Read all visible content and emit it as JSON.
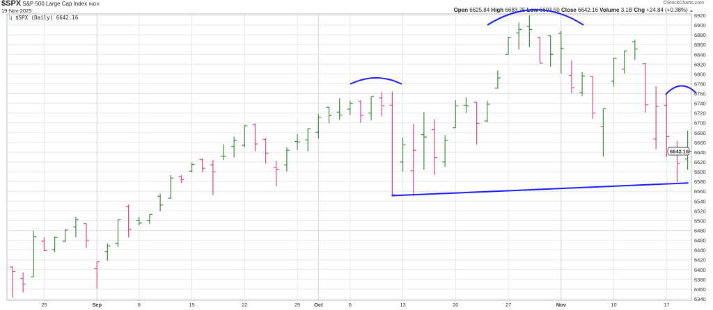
{
  "header": {
    "symbol": "$SPX",
    "name": "S&P 500 Large Cap Index",
    "exchange": "INDX",
    "date": "19-Nov-2025",
    "copyright": "©StockCharts.com",
    "open_label": "Open",
    "open": "6625.84",
    "high_label": "High",
    "high": "6683.75",
    "low_label": "Low",
    "low": "6603.50",
    "close_label": "Close",
    "close": "6642.16",
    "volume_label": "Volume",
    "volume": "3.1B",
    "chg_label": "Chg",
    "chg": "+24.84 (+0.38%)",
    "chg_icon": "triangle-up-icon"
  },
  "legend": {
    "text": "$SPX (Daily) 6642.16",
    "icon": "ohlc-bar-icon"
  },
  "last_price_label": "6642.16",
  "colors": {
    "up": "#3c8c3c",
    "down": "#e2457c",
    "annotation": "#1a1aff",
    "grid": "#e6e6e6"
  },
  "chart_data": {
    "type": "ohlc",
    "ylim": [
      6330,
      6925
    ],
    "yticks": [
      6340,
      6360,
      6380,
      6400,
      6420,
      6440,
      6460,
      6480,
      6500,
      6520,
      6540,
      6560,
      6580,
      6600,
      6620,
      6640,
      6660,
      6680,
      6700,
      6720,
      6740,
      6760,
      6780,
      6800,
      6820,
      6840,
      6860,
      6880,
      6900,
      6920
    ],
    "xticks": [
      {
        "date": "2025-08-25",
        "label": "25"
      },
      {
        "date": "2025-09-02",
        "label": "Sep",
        "month": true
      },
      {
        "date": "2025-09-08",
        "label": "8"
      },
      {
        "date": "2025-09-15",
        "label": "15"
      },
      {
        "date": "2025-09-22",
        "label": "22"
      },
      {
        "date": "2025-09-29",
        "label": "29"
      },
      {
        "date": "2025-10-01",
        "label": "Oct",
        "month": true
      },
      {
        "date": "2025-10-06",
        "label": "6"
      },
      {
        "date": "2025-10-13",
        "label": "13"
      },
      {
        "date": "2025-10-20",
        "label": "20"
      },
      {
        "date": "2025-10-27",
        "label": "27"
      },
      {
        "date": "2025-11-03",
        "label": "Nov",
        "month": true
      },
      {
        "date": "2025-11-10",
        "label": "10"
      },
      {
        "date": "2025-11-17",
        "label": "17"
      }
    ],
    "grid": true,
    "bars": [
      [
        "2025-08-20",
        6405,
        6407,
        6343,
        6396
      ],
      [
        "2025-08-21",
        6382,
        6394,
        6353,
        6370
      ],
      [
        "2025-08-22",
        6385,
        6479,
        6385,
        6467
      ],
      [
        "2025-08-25",
        6458,
        6466,
        6438,
        6439
      ],
      [
        "2025-08-26",
        6441,
        6467,
        6435,
        6466
      ],
      [
        "2025-08-27",
        6458,
        6482,
        6456,
        6481
      ],
      [
        "2025-08-28",
        6487,
        6508,
        6466,
        6502
      ],
      [
        "2025-08-29",
        6494,
        6494,
        6444,
        6460
      ],
      [
        "2025-09-02",
        6402,
        6416,
        6361,
        6416
      ],
      [
        "2025-09-03",
        6437,
        6453,
        6418,
        6448
      ],
      [
        "2025-09-04",
        6453,
        6502,
        6446,
        6502
      ],
      [
        "2025-09-05",
        6529,
        6533,
        6466,
        6482
      ],
      [
        "2025-09-08",
        6500,
        6508,
        6490,
        6495
      ],
      [
        "2025-09-09",
        6500,
        6513,
        6493,
        6513
      ],
      [
        "2025-09-10",
        6550,
        6555,
        6519,
        6532
      ],
      [
        "2025-09-11",
        6546,
        6593,
        6545,
        6587
      ],
      [
        "2025-09-12",
        6590,
        6593,
        6577,
        6584
      ],
      [
        "2025-09-15",
        6601,
        6619,
        6599,
        6615
      ],
      [
        "2025-09-16",
        6625,
        6627,
        6599,
        6607
      ],
      [
        "2025-09-17",
        6614,
        6624,
        6552,
        6600
      ],
      [
        "2025-09-18",
        6632,
        6656,
        6624,
        6632
      ],
      [
        "2025-09-19",
        6652,
        6672,
        6629,
        6664
      ],
      [
        "2025-09-22",
        6654,
        6696,
        6650,
        6694
      ],
      [
        "2025-09-23",
        6696,
        6699,
        6642,
        6657
      ],
      [
        "2025-09-24",
        6666,
        6669,
        6617,
        6638
      ],
      [
        "2025-09-25",
        6609,
        6622,
        6570,
        6605
      ],
      [
        "2025-09-26",
        6614,
        6650,
        6601,
        6644
      ],
      [
        "2025-09-29",
        6662,
        6677,
        6644,
        6661
      ],
      [
        "2025-09-30",
        6665,
        6689,
        6642,
        6688
      ],
      [
        "2025-10-01",
        6681,
        6718,
        6668,
        6711
      ],
      [
        "2025-10-02",
        6732,
        6733,
        6699,
        6715
      ],
      [
        "2025-10-03",
        6722,
        6750,
        6706,
        6716
      ],
      [
        "2025-10-06",
        6728,
        6745,
        6716,
        6740
      ],
      [
        "2025-10-07",
        6744,
        6746,
        6700,
        6715
      ],
      [
        "2025-10-08",
        6720,
        6754,
        6705,
        6754
      ],
      [
        "2025-10-09",
        6751,
        6763,
        6713,
        6735
      ],
      [
        "2025-10-10",
        6736,
        6764,
        6551,
        6553
      ],
      [
        "2025-10-13",
        6620,
        6670,
        6600,
        6655
      ],
      [
        "2025-10-14",
        6602,
        6698,
        6550,
        6644
      ],
      [
        "2025-10-15",
        6676,
        6722,
        6604,
        6671
      ],
      [
        "2025-10-16",
        6686,
        6708,
        6593,
        6629
      ],
      [
        "2025-10-17",
        6620,
        6675,
        6610,
        6664
      ],
      [
        "2025-10-20",
        6690,
        6746,
        6690,
        6735
      ],
      [
        "2025-10-21",
        6736,
        6752,
        6720,
        6735
      ],
      [
        "2025-10-22",
        6742,
        6742,
        6656,
        6699
      ],
      [
        "2025-10-23",
        6704,
        6745,
        6701,
        6738
      ],
      [
        "2025-10-24",
        6771,
        6807,
        6770,
        6792
      ],
      [
        "2025-10-27",
        6840,
        6876,
        6840,
        6875
      ],
      [
        "2025-10-28",
        6884,
        6905,
        6850,
        6891
      ],
      [
        "2025-10-29",
        6897,
        6920,
        6855,
        6891
      ],
      [
        "2025-10-30",
        6875,
        6876,
        6822,
        6822
      ],
      [
        "2025-10-31",
        6878,
        6879,
        6815,
        6840
      ],
      [
        "2025-11-03",
        6883,
        6888,
        6801,
        6852
      ],
      [
        "2025-11-04",
        6797,
        6828,
        6761,
        6772
      ],
      [
        "2025-11-05",
        6762,
        6804,
        6755,
        6796
      ],
      [
        "2025-11-06",
        6795,
        6795,
        6708,
        6720
      ],
      [
        "2025-11-07",
        6692,
        6729,
        6631,
        6729
      ],
      [
        "2025-11-10",
        6785,
        6833,
        6774,
        6832
      ],
      [
        "2025-11-11",
        6810,
        6848,
        6801,
        6847
      ],
      [
        "2025-11-12",
        6866,
        6870,
        6829,
        6851
      ],
      [
        "2025-11-13",
        6821,
        6822,
        6721,
        6737
      ],
      [
        "2025-11-14",
        6667,
        6775,
        6646,
        6734
      ],
      [
        "2025-11-17",
        6736,
        6758,
        6630,
        6672
      ],
      [
        "2025-11-18",
        6648,
        6663,
        6579,
        6617
      ],
      [
        "2025-11-19",
        6626,
        6684,
        6604,
        6642
      ]
    ],
    "annotations": {
      "trendline": [
        [
          "2025-10-10",
          6551
        ],
        [
          "2025-11-19",
          6577
        ]
      ]
    }
  }
}
